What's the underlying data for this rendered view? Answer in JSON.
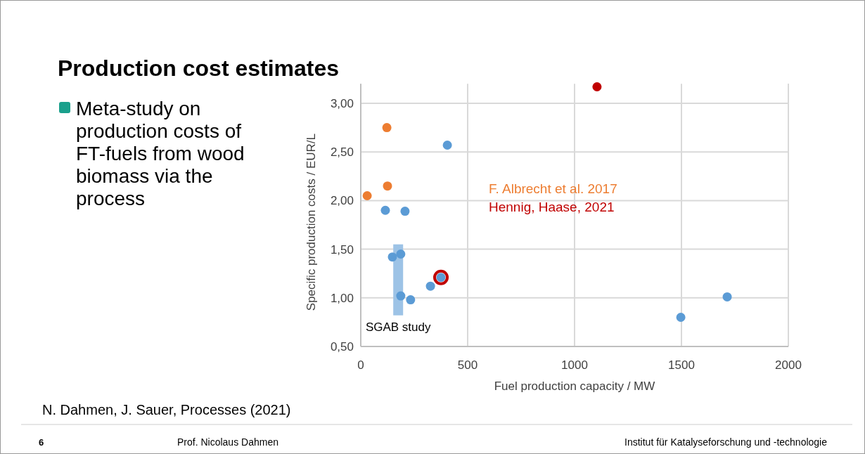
{
  "chart_data": {
    "type": "scatter",
    "title": "Production cost estimates",
    "xlabel": "Fuel production capacity / MW",
    "ylabel": "Specific production costs / EUR/L",
    "xlim": [
      0,
      2000
    ],
    "xticks": [
      0,
      500,
      1000,
      1500,
      2000
    ],
    "ylim": [
      0.5,
      3.2
    ],
    "yticks": [
      {
        "value": 0.5,
        "label": "0,50"
      },
      {
        "value": 1,
        "label": "1,00"
      },
      {
        "value": 1.5,
        "label": "1,50"
      },
      {
        "value": 2,
        "label": "2,00"
      },
      {
        "value": 2.5,
        "label": "2,50"
      },
      {
        "value": 3,
        "label": "3,00"
      }
    ],
    "grid": true,
    "legend": "center",
    "marker": "circle",
    "series": [
      {
        "type": "bar",
        "color": "#9dc3e6",
        "x": [
          175
        ],
        "base": [
          0.82
        ],
        "values": [
          0.73
        ]
      },
      {
        "color": "#5b9bd5",
        "x": [
          405,
          115,
          207,
          148,
          187,
          187,
          233,
          326,
          375,
          1497,
          1714
        ],
        "values": [
          2.57,
          1.9,
          1.89,
          1.42,
          1.45,
          1.02,
          0.98,
          1.12,
          1.21,
          0.8,
          1.01
        ]
      },
      {
        "name": "Hennig, Haase, 2021",
        "color": "#c00000",
        "x": [
          375,
          1105
        ],
        "values": [
          1.21,
          3.17
        ]
      },
      {
        "name": "F. Albrecht et al. 2017",
        "color": "#ed7d31",
        "x": [
          122,
          30,
          125
        ],
        "values": [
          2.75,
          2.05,
          2.15
        ]
      }
    ],
    "annotations": [
      "SGAB study",
      "Meta-study on production costs of FT-fuels from wood biomass via the process",
      "N. Dahmen, J. Sauer, Processes (2021)",
      "6",
      "Prof. Nicolaus Dahmen",
      "Institut für Katalyseforschung und -technologie"
    ]
  }
}
